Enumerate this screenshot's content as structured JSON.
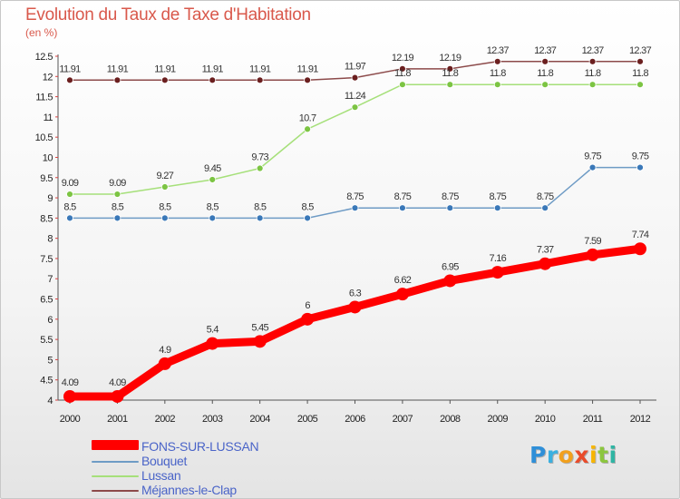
{
  "title": "Evolution du Taux de Taxe d'Habitation",
  "unit": "(en %)",
  "logo_text": "Proxiti",
  "chart_data": {
    "type": "line",
    "title": "Evolution du Taux de Taxe d'Habitation",
    "ylabel": "(en %)",
    "xlabel": "",
    "x": [
      "2000",
      "2001",
      "2002",
      "2003",
      "2004",
      "2005",
      "2006",
      "2007",
      "2008",
      "2009",
      "2010",
      "2011",
      "2012"
    ],
    "ylim": [
      4,
      12.5
    ],
    "y_ticks": [
      "4",
      "4.5",
      "5",
      "5.5",
      "6",
      "6.5",
      "7",
      "7.5",
      "8",
      "8.5",
      "9",
      "9.5",
      "10",
      "10.5",
      "11",
      "11.5",
      "12",
      "12.5"
    ],
    "grid": false,
    "legend_position": "bottom-left",
    "series": [
      {
        "name": "FONS-SUR-LUSSAN",
        "color": "#ff0000",
        "values": [
          4.09,
          4.09,
          4.9,
          5.4,
          5.45,
          6,
          6.3,
          6.62,
          6.95,
          7.16,
          7.37,
          7.59,
          7.74
        ],
        "labels": [
          "4.09",
          "4.09",
          "4.9",
          "5.4",
          "5.45",
          "6",
          "6.3",
          "6.62",
          "6.95",
          "7.16",
          "7.37",
          "7.59",
          "7.74"
        ]
      },
      {
        "name": "Bouquet",
        "color": "#6e9bc5",
        "marker_color": "#3a78b8",
        "values": [
          8.5,
          8.5,
          8.5,
          8.5,
          8.5,
          8.5,
          8.75,
          8.75,
          8.75,
          8.75,
          8.75,
          9.75,
          9.75
        ],
        "labels": [
          "8.5",
          "8.5",
          "8.5",
          "8.5",
          "8.5",
          "8.5",
          "8.75",
          "8.75",
          "8.75",
          "8.75",
          "8.75",
          "9.75",
          "9.75"
        ]
      },
      {
        "name": "Lussan",
        "color": "#a6e07a",
        "marker_color": "#7cc443",
        "values": [
          9.09,
          9.09,
          9.27,
          9.45,
          9.73,
          10.7,
          11.24,
          11.8,
          11.8,
          11.8,
          11.8,
          11.8,
          11.8
        ],
        "labels": [
          "9.09",
          "9.09",
          "9.27",
          "9.45",
          "9.73",
          "10.7",
          "11.24",
          "11.8",
          "11.8",
          "11.8",
          "11.8",
          "11.8",
          "11.8"
        ]
      },
      {
        "name": "Méjannes-le-Clap",
        "color": "#8c4a4a",
        "marker_color": "#6b1f1f",
        "values": [
          11.91,
          11.91,
          11.91,
          11.91,
          11.91,
          11.91,
          11.97,
          12.19,
          12.19,
          12.37,
          12.37,
          12.37,
          12.37
        ],
        "labels": [
          "11.91",
          "11.91",
          "11.91",
          "11.91",
          "11.91",
          "11.91",
          "11.97",
          "12.19",
          "12.19",
          "12.37",
          "12.37",
          "12.37",
          "12.37"
        ]
      }
    ]
  }
}
